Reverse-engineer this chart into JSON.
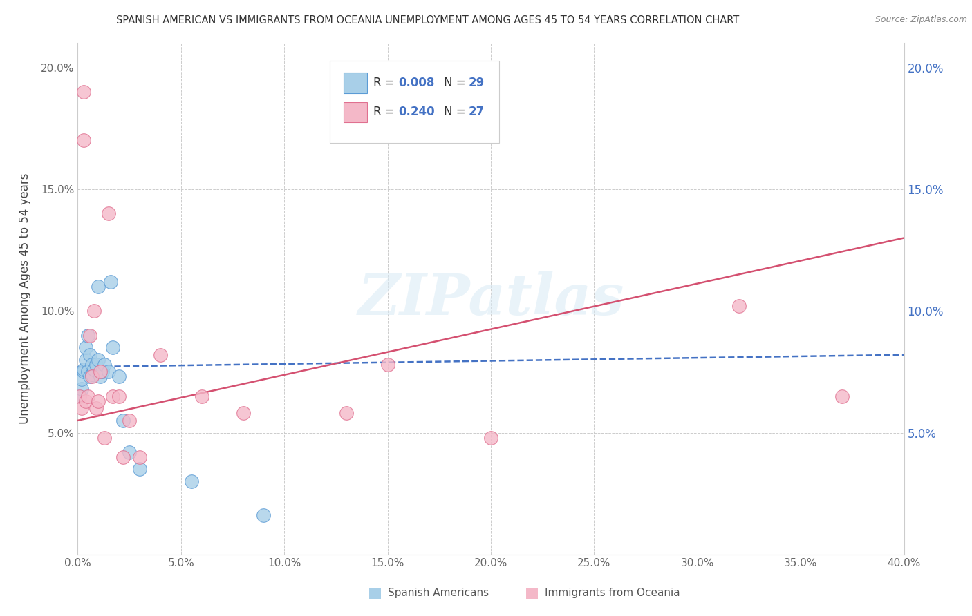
{
  "title": "SPANISH AMERICAN VS IMMIGRANTS FROM OCEANIA UNEMPLOYMENT AMONG AGES 45 TO 54 YEARS CORRELATION CHART",
  "source": "Source: ZipAtlas.com",
  "ylabel": "Unemployment Among Ages 45 to 54 years",
  "xlim": [
    0,
    0.4
  ],
  "ylim": [
    0,
    0.21
  ],
  "xticks": [
    0.0,
    0.05,
    0.1,
    0.15,
    0.2,
    0.25,
    0.3,
    0.35,
    0.4
  ],
  "yticks_left": [
    0.0,
    0.05,
    0.1,
    0.15,
    0.2
  ],
  "yticks_right": [
    0.05,
    0.1,
    0.15,
    0.2
  ],
  "ytick_labels_left": [
    "",
    "5.0%",
    "10.0%",
    "15.0%",
    "20.0%"
  ],
  "ytick_labels_right": [
    "5.0%",
    "10.0%",
    "15.0%",
    "20.0%"
  ],
  "xtick_labels": [
    "0.0%",
    "5.0%",
    "10.0%",
    "15.0%",
    "20.0%",
    "25.0%",
    "30.0%",
    "35.0%",
    "40.0%"
  ],
  "color_blue": "#a8cfe8",
  "color_pink": "#f4b8c8",
  "color_blue_edge": "#5b9bd5",
  "color_pink_edge": "#e07090",
  "trendline_blue_color": "#4472c4",
  "trendline_pink_color": "#d45070",
  "color_blue_text": "#4472c4",
  "watermark": "ZIPatlas",
  "blue_x": [
    0.001,
    0.002,
    0.002,
    0.003,
    0.003,
    0.004,
    0.004,
    0.005,
    0.005,
    0.006,
    0.006,
    0.007,
    0.007,
    0.008,
    0.009,
    0.01,
    0.01,
    0.011,
    0.012,
    0.013,
    0.015,
    0.016,
    0.017,
    0.02,
    0.022,
    0.025,
    0.03,
    0.055,
    0.09
  ],
  "blue_y": [
    0.065,
    0.068,
    0.072,
    0.075,
    0.076,
    0.08,
    0.085,
    0.075,
    0.09,
    0.073,
    0.082,
    0.074,
    0.078,
    0.076,
    0.078,
    0.08,
    0.11,
    0.073,
    0.075,
    0.078,
    0.075,
    0.112,
    0.085,
    0.073,
    0.055,
    0.042,
    0.035,
    0.03,
    0.016
  ],
  "pink_x": [
    0.001,
    0.002,
    0.003,
    0.003,
    0.004,
    0.005,
    0.006,
    0.007,
    0.008,
    0.009,
    0.01,
    0.011,
    0.013,
    0.015,
    0.017,
    0.02,
    0.022,
    0.025,
    0.03,
    0.04,
    0.06,
    0.08,
    0.13,
    0.15,
    0.2,
    0.32,
    0.37
  ],
  "pink_y": [
    0.065,
    0.06,
    0.19,
    0.17,
    0.063,
    0.065,
    0.09,
    0.073,
    0.1,
    0.06,
    0.063,
    0.075,
    0.048,
    0.14,
    0.065,
    0.065,
    0.04,
    0.055,
    0.04,
    0.082,
    0.065,
    0.058,
    0.058,
    0.078,
    0.048,
    0.102,
    0.065
  ],
  "blue_trend_x0": 0.0,
  "blue_trend_y0": 0.077,
  "blue_trend_x1": 0.4,
  "blue_trend_y1": 0.082,
  "pink_trend_x0": 0.0,
  "pink_trend_y0": 0.055,
  "pink_trend_x1": 0.4,
  "pink_trend_y1": 0.13
}
